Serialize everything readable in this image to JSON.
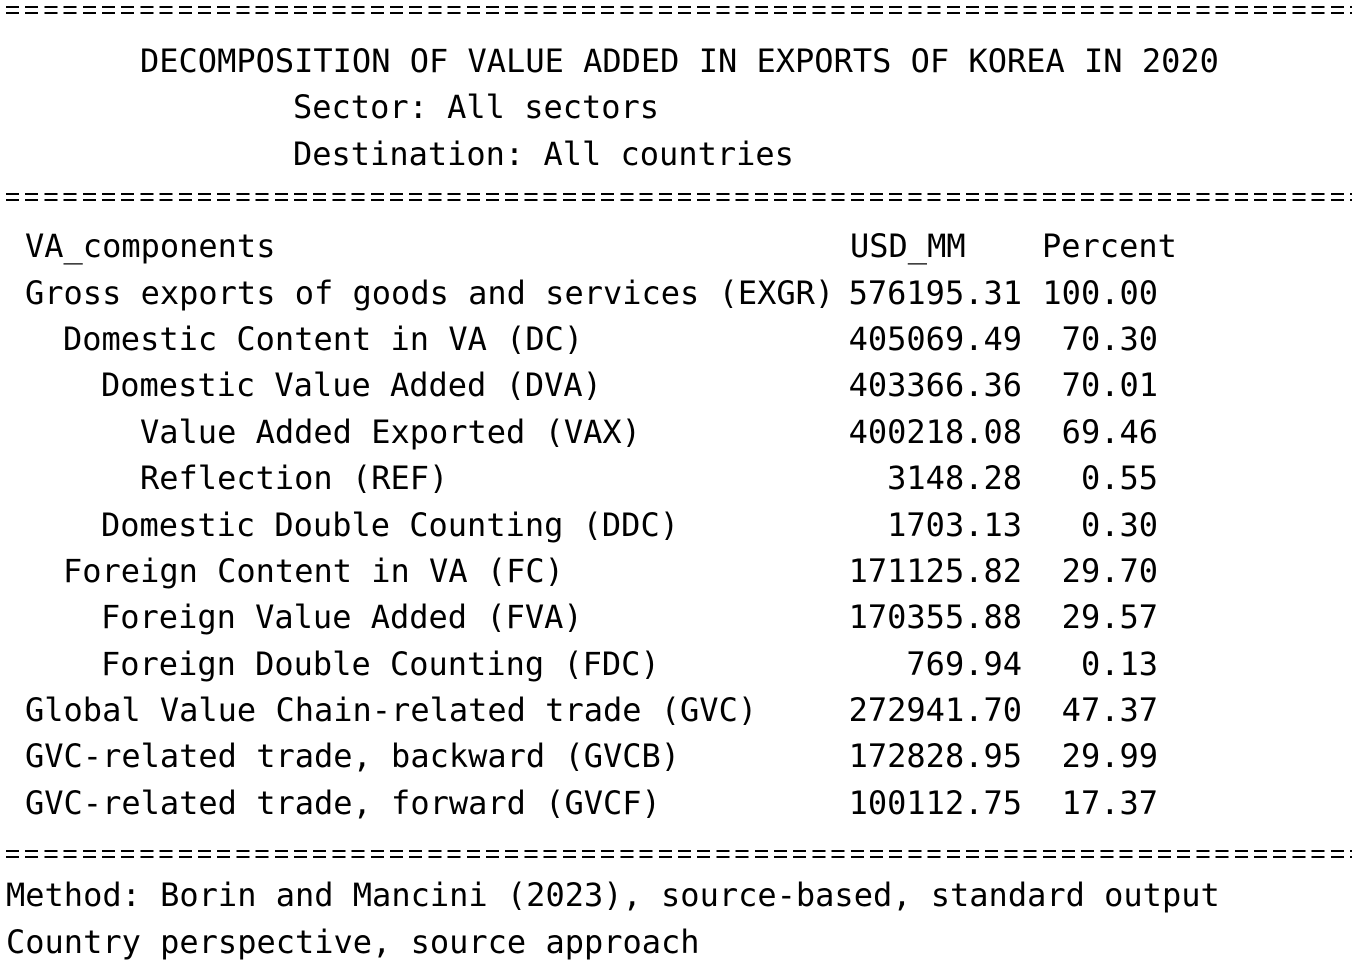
{
  "title": {
    "heading": "DECOMPOSITION OF VALUE ADDED IN EXPORTS OF KOREA IN 2020",
    "sector": "Sector: All sectors",
    "destination": "Destination: All countries"
  },
  "table": {
    "headers": [
      "VA_components",
      "USD_MM",
      "Percent"
    ],
    "rows": [
      {
        "label": "Gross exports of goods and services (EXGR)",
        "usd": "576195.31",
        "pct": "100.00"
      },
      {
        "label": "Domestic Content in VA (DC)",
        "usd": "405069.49",
        "pct": "70.30"
      },
      {
        "label": "Domestic Value Added (DVA)",
        "usd": "403366.36",
        "pct": "70.01"
      },
      {
        "label": "Value Added Exported (VAX)",
        "usd": "400218.08",
        "pct": "69.46"
      },
      {
        "label": "Reflection (REF)",
        "usd": "3148.28",
        "pct": "0.55"
      },
      {
        "label": "Domestic Double Counting (DDC)",
        "usd": "1703.13",
        "pct": "0.30"
      },
      {
        "label": "Foreign Content in VA (FC)",
        "usd": "171125.82",
        "pct": "29.70"
      },
      {
        "label": "Foreign Value Added (FVA)",
        "usd": "170355.88",
        "pct": "29.57"
      },
      {
        "label": "Foreign Double Counting (FDC)",
        "usd": "769.94",
        "pct": "0.13"
      },
      {
        "label": "Global Value Chain-related trade (GVC)",
        "usd": "272941.70",
        "pct": "47.37"
      },
      {
        "label": "GVC-related trade, backward (GVCB)",
        "usd": "172828.95",
        "pct": "29.99"
      },
      {
        "label": "GVC-related trade, forward (GVCF)",
        "usd": "100112.75",
        "pct": "17.37"
      }
    ]
  },
  "footer": {
    "method": "Method: Borin and Mancini (2023), source-based, standard output",
    "perspective": "Country perspective, source approach"
  }
}
